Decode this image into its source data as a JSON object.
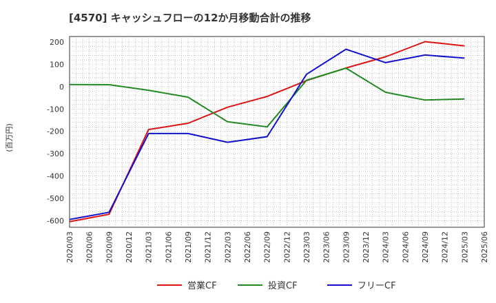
{
  "chart_data": {
    "type": "line",
    "title": "[4570]  キャッシュフローの12か月移動合計の推移",
    "ylabel": "(百万円)",
    "xlabel": "",
    "ylim": [
      -630,
      225
    ],
    "yticks": [
      200,
      100,
      0,
      -100,
      -200,
      -300,
      -400,
      -500,
      -600
    ],
    "xticks": [
      "2020/03",
      "2020/06",
      "2020/09",
      "2020/12",
      "2021/03",
      "2021/06",
      "2021/09",
      "2021/12",
      "2022/03",
      "2022/06",
      "2022/09",
      "2022/12",
      "2023/03",
      "2023/06",
      "2023/09",
      "2023/12",
      "2024/03",
      "2024/06",
      "2024/09",
      "2024/12",
      "2025/03",
      "2025/06"
    ],
    "grid": true,
    "legend_position": "bottom",
    "series": [
      {
        "name": "営業CF",
        "color": "#dd1111",
        "points": [
          [
            "2020/03",
            -605
          ],
          [
            "2020/09",
            -572
          ],
          [
            "2021/03",
            -192
          ],
          [
            "2021/09",
            -164
          ],
          [
            "2022/03",
            -92
          ],
          [
            "2022/09",
            -44
          ],
          [
            "2023/03",
            27
          ],
          [
            "2023/09",
            84
          ],
          [
            "2024/03",
            134
          ],
          [
            "2024/09",
            202
          ],
          [
            "2025/03",
            183
          ]
        ]
      },
      {
        "name": "投資CF",
        "color": "#228822",
        "points": [
          [
            "2020/03",
            10
          ],
          [
            "2020/09",
            9
          ],
          [
            "2021/03",
            -16
          ],
          [
            "2021/09",
            -47
          ],
          [
            "2022/03",
            -157
          ],
          [
            "2022/09",
            -180
          ],
          [
            "2023/03",
            29
          ],
          [
            "2023/09",
            83
          ],
          [
            "2024/03",
            -25
          ],
          [
            "2024/09",
            -60
          ],
          [
            "2025/03",
            -55
          ]
        ]
      },
      {
        "name": "フリーCF",
        "color": "#1111cc",
        "points": [
          [
            "2020/03",
            -595
          ],
          [
            "2020/09",
            -563
          ],
          [
            "2021/03",
            -210
          ],
          [
            "2021/09",
            -210
          ],
          [
            "2022/03",
            -249
          ],
          [
            "2022/09",
            -224
          ],
          [
            "2023/03",
            56
          ],
          [
            "2023/09",
            168
          ],
          [
            "2024/03",
            108
          ],
          [
            "2024/09",
            142
          ],
          [
            "2025/03",
            128
          ]
        ]
      }
    ]
  }
}
